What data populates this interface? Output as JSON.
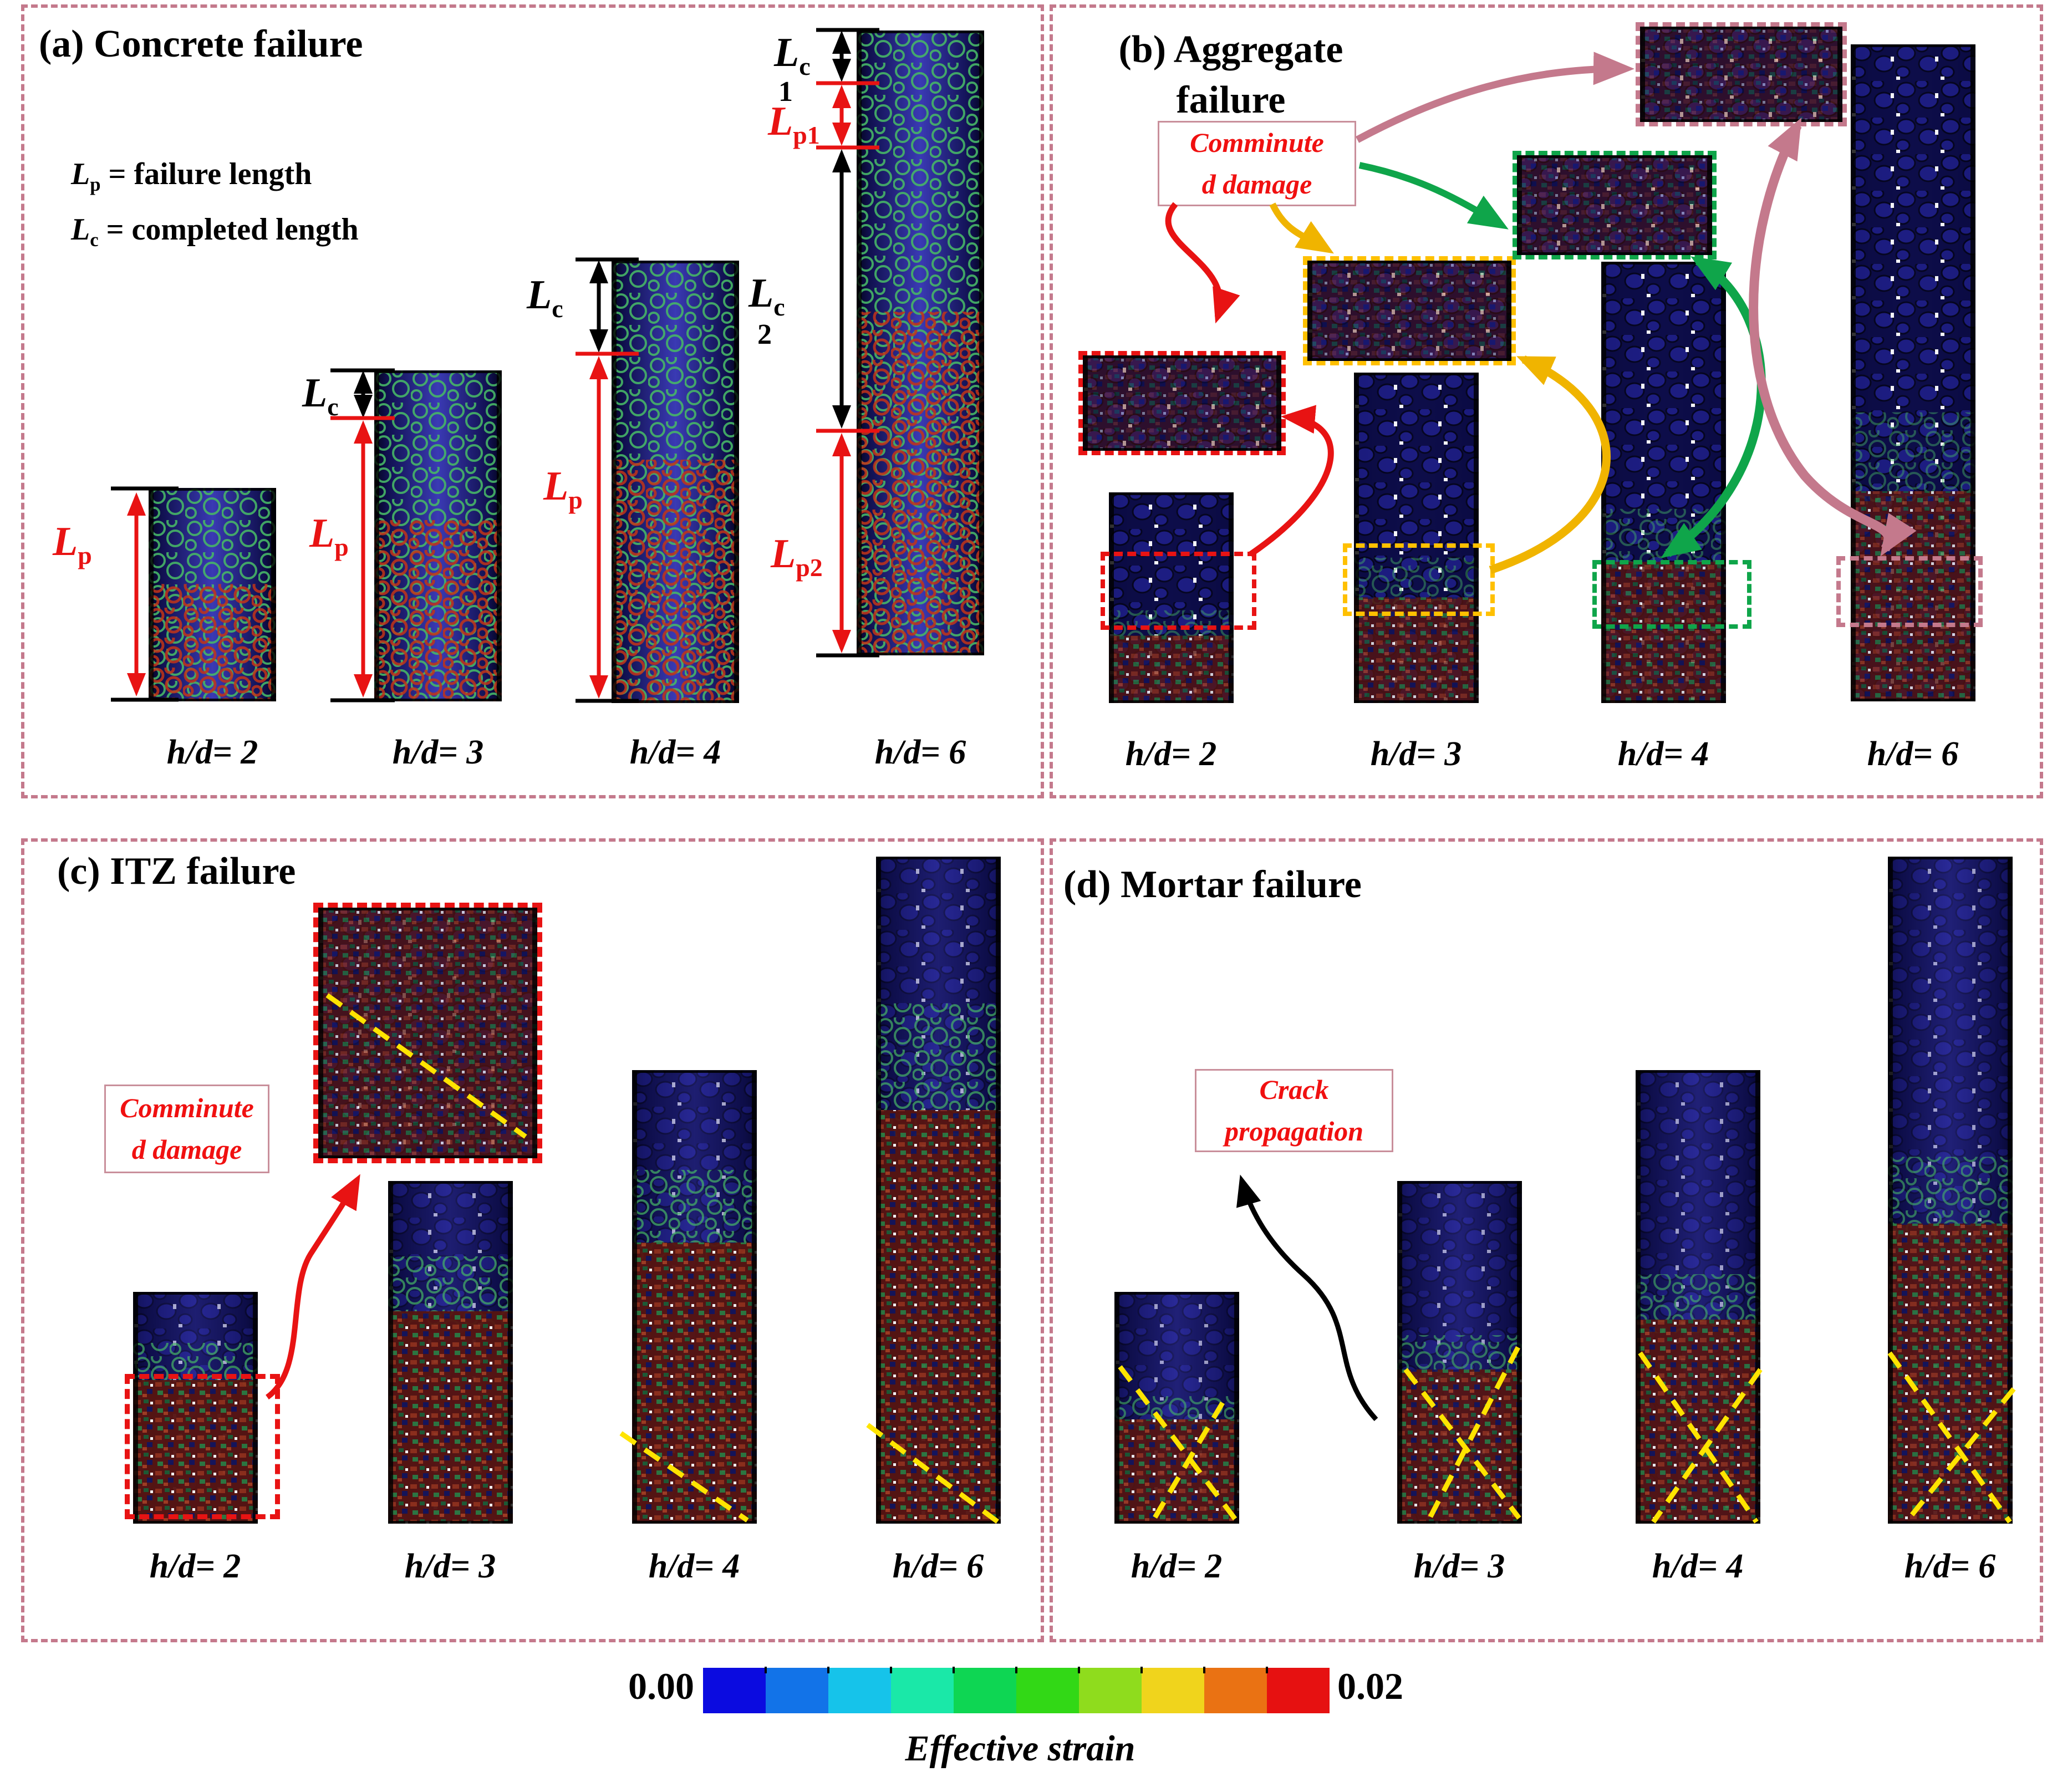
{
  "figure": {
    "panel_a": {
      "tag": "(a)",
      "title": "Concrete failure",
      "legend": [
        {
          "sym": "L",
          "sub": "p",
          "rest": " = failure length"
        },
        {
          "sym": "L",
          "sub": "c",
          "rest": " = completed length"
        }
      ],
      "dims": {
        "lp": {
          "sym": "L",
          "sub": "p"
        },
        "lc": {
          "sym": "L",
          "sub": "c"
        },
        "lc1": {
          "sym": "L",
          "sub": "c",
          "idx": "1"
        },
        "lp1": {
          "sym": "L",
          "sub": "p1"
        },
        "lc2": {
          "sym": "L",
          "sub": "c",
          "idx": "2"
        },
        "lp2": {
          "sym": "L",
          "sub": "p2"
        }
      },
      "specimens": [
        {
          "label": "h/d= 2"
        },
        {
          "label": "h/d= 3"
        },
        {
          "label": "h/d= 4"
        },
        {
          "label": "h/d= 6"
        }
      ]
    },
    "panel_b": {
      "tag": "(b)",
      "title_line1": "Aggregate",
      "title_line2": "failure",
      "callout_line1": "Comminute",
      "callout_line2": "d damage",
      "specimens": [
        {
          "label": "h/d= 2"
        },
        {
          "label": "h/d= 3"
        },
        {
          "label": "h/d= 4"
        },
        {
          "label": "h/d= 6"
        }
      ]
    },
    "panel_c": {
      "tag": "(c)",
      "title": "ITZ failure",
      "callout_line1": "Comminute",
      "callout_line2": "d damage",
      "specimens": [
        {
          "label": "h/d= 2"
        },
        {
          "label": "h/d= 3"
        },
        {
          "label": "h/d= 4"
        },
        {
          "label": "h/d= 6"
        }
      ]
    },
    "panel_d": {
      "tag": "(d)",
      "title": "Mortar failure",
      "callout_line1": "Crack",
      "callout_line2": "propagation",
      "specimens": [
        {
          "label": "h/d= 2"
        },
        {
          "label": "h/d= 3"
        },
        {
          "label": "h/d= 4"
        },
        {
          "label": "h/d= 6"
        }
      ]
    },
    "colorbar": {
      "min": "0.00",
      "max": "0.02",
      "label": "Effective strain",
      "colors": [
        "#0b0be0",
        "#1273e8",
        "#16c3ea",
        "#1ae8a8",
        "#0ed653",
        "#32d816",
        "#8fdc1d",
        "#f0d41c",
        "#ea7213",
        "#e61111"
      ]
    },
    "accent_colors": {
      "panel_border": "#c4798c",
      "red": "#e81313",
      "gold": "#ffc000",
      "green": "#0fa54a",
      "pink": "#c4798c",
      "crack_yellow": "#ffe400"
    }
  }
}
